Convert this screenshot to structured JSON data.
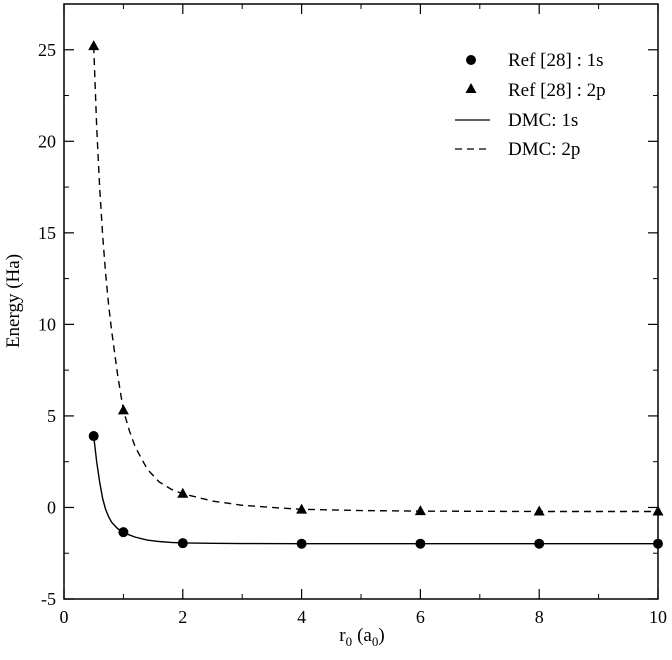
{
  "chart_data": {
    "type": "line",
    "xlabel": "r",
    "xlabel_sub": "0",
    "xlabel_paren_open": "(a",
    "xlabel_paren_sub": "0",
    "xlabel_paren_close": ")",
    "ylabel": "Energy (Ha)",
    "xlim": [
      0,
      10
    ],
    "ylim": [
      -5,
      27.5
    ],
    "x_ticks": [
      0,
      2,
      4,
      6,
      8,
      10
    ],
    "y_ticks": [
      -5,
      0,
      5,
      10,
      15,
      20,
      25
    ],
    "grid": false,
    "legend_position": "top-right",
    "series": [
      {
        "name": "Ref [28] : 1s",
        "style": "circle-marker",
        "x": [
          0.5,
          1,
          2,
          4,
          6,
          8,
          10
        ],
        "y": [
          3.9,
          -1.35,
          -1.95,
          -1.98,
          -1.98,
          -1.98,
          -1.98
        ]
      },
      {
        "name": "Ref [28] : 2p",
        "style": "triangle-marker",
        "x": [
          0.5,
          1,
          2,
          4,
          6,
          8,
          10
        ],
        "y": [
          25.2,
          5.3,
          0.75,
          -0.12,
          -0.2,
          -0.22,
          -0.22
        ]
      },
      {
        "name": "DMC: 1s",
        "style": "solid-line",
        "x": [
          0.5,
          0.55,
          0.6,
          0.65,
          0.7,
          0.75,
          0.8,
          0.9,
          1.0,
          1.1,
          1.2,
          1.4,
          1.6,
          1.8,
          2.0,
          2.5,
          3,
          4,
          5,
          6,
          7,
          8,
          9,
          10
        ],
        "y": [
          3.9,
          2.5,
          1.4,
          0.5,
          -0.1,
          -0.5,
          -0.8,
          -1.15,
          -1.35,
          -1.5,
          -1.62,
          -1.78,
          -1.86,
          -1.91,
          -1.94,
          -1.96,
          -1.97,
          -1.98,
          -1.98,
          -1.98,
          -1.98,
          -1.98,
          -1.98,
          -1.98
        ]
      },
      {
        "name": "DMC: 2p",
        "style": "dashed-line",
        "x": [
          0.5,
          0.55,
          0.6,
          0.65,
          0.7,
          0.75,
          0.8,
          0.9,
          1.0,
          1.1,
          1.2,
          1.4,
          1.6,
          1.8,
          2.0,
          2.5,
          3,
          3.5,
          4,
          5,
          6,
          7,
          8,
          9,
          10
        ],
        "y": [
          25.2,
          20.8,
          17.5,
          14.9,
          12.8,
          11.1,
          9.7,
          7.3,
          5.3,
          4.2,
          3.3,
          2.1,
          1.4,
          1.0,
          0.75,
          0.35,
          0.12,
          0.0,
          -0.1,
          -0.17,
          -0.2,
          -0.21,
          -0.22,
          -0.22,
          -0.22
        ]
      }
    ]
  }
}
